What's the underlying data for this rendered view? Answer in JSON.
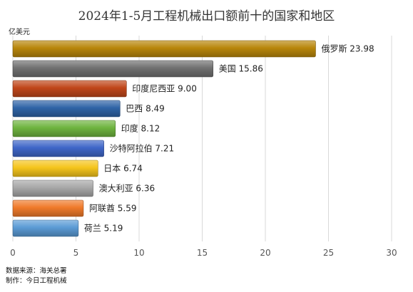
{
  "chart_data": {
    "type": "bar",
    "orientation": "horizontal",
    "title": "2024年1-5月工程机械出口额前十的国家和地区",
    "unit": "亿美元",
    "categories": [
      "俄罗斯",
      "美国",
      "印度尼西亚",
      "巴西",
      "印度",
      "沙特阿拉伯",
      "日本",
      "澳大利亚",
      "阿联酋",
      "荷兰"
    ],
    "values": [
      23.98,
      15.86,
      9.0,
      8.49,
      8.12,
      7.21,
      6.74,
      6.36,
      5.59,
      5.19
    ],
    "value_labels": [
      "23.98",
      "15.86",
      "9.00",
      "8.49",
      "8.12",
      "7.21",
      "6.74",
      "6.36",
      "5.59",
      "5.19"
    ],
    "colors": [
      "#b8860b",
      "#707070",
      "#c0461a",
      "#2f64a6",
      "#6eb43f",
      "#3f66c8",
      "#f5c51c",
      "#a8a8a8",
      "#f07a2a",
      "#5b9bd5"
    ],
    "xlim": [
      0,
      30
    ],
    "xticks": [
      0,
      5,
      10,
      15,
      20,
      25,
      30
    ],
    "xtick_labels": [
      "0",
      "5",
      "10",
      "15",
      "20",
      "25",
      "30"
    ],
    "grid": true
  },
  "footer": {
    "source": "数据来源：海关总署",
    "producer": "制作：今日工程机械"
  }
}
